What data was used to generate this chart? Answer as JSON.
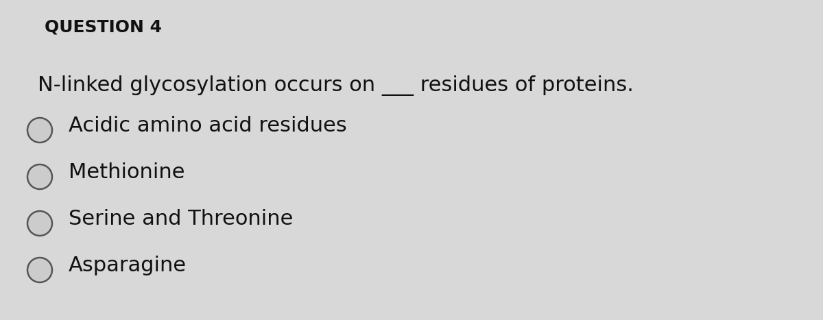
{
  "background_color": "#d8d8d8",
  "title": "QUESTION 4",
  "title_fontsize": 18,
  "title_fontweight": "bold",
  "question_text_part1": "N-linked glycosylation occurs on ",
  "question_text_blank": "___",
  "question_text_part2": " residues of proteins.",
  "question_fontsize": 22,
  "options": [
    "Acidic amino acid residues",
    "Methionine",
    "Serine and Threonine",
    "Asparagine"
  ],
  "options_fontsize": 22,
  "circle_color": "#555555",
  "circle_facecolor": "#cccccc",
  "text_color": "#111111",
  "title_color": "#111111"
}
